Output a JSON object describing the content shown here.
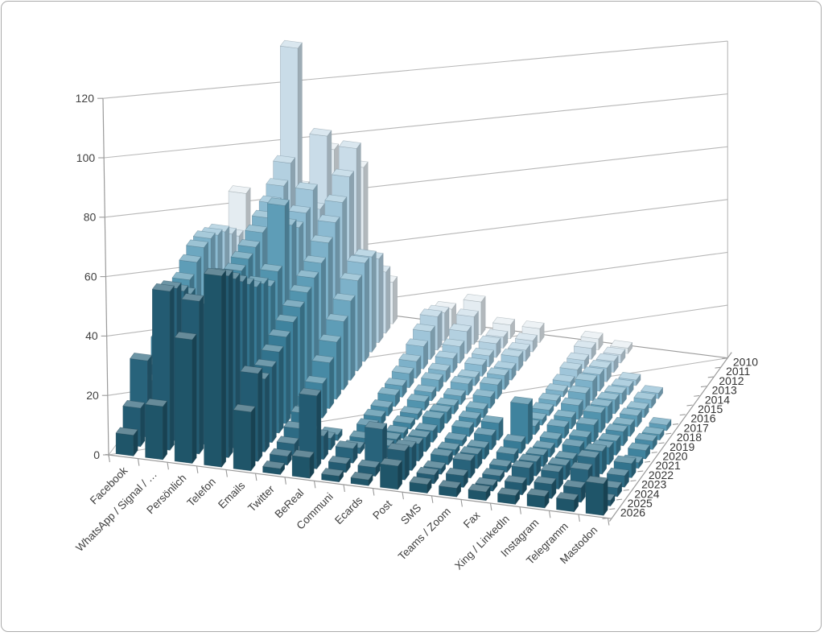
{
  "page": {
    "background": "#ffffff",
    "frame_border_color": "#ababab"
  },
  "chart_data": {
    "type": "bar",
    "style": "3d-clustered-column",
    "title": "",
    "legend_position": "none",
    "grid": true,
    "categories": [
      "Facebook",
      "WhatsApp / Signal / …",
      "Persönlich",
      "Telefon",
      "Emails",
      "Twitter",
      "BeReal",
      "Communi",
      "Ecards",
      "Post",
      "SMS",
      "Teams / Zoom",
      "Fax",
      "Xing / LinkedIn",
      "Instagram",
      "Telegramm",
      "Mastodon"
    ],
    "depth_axis_labels": [
      "2010",
      "2011",
      "2012",
      "2013",
      "2014",
      "2015",
      "2016",
      "2017",
      "2018",
      "2019",
      "2020",
      "2021",
      "2022",
      "2023",
      "2024",
      "2025",
      "2026"
    ],
    "value_axis": {
      "min": 0,
      "max": 120,
      "step": 20,
      "tick_labels": [
        "0",
        "20",
        "40",
        "60",
        "80",
        "100",
        "120"
      ]
    },
    "series": [
      {
        "name": "2010",
        "color": "#e4ecf1",
        "values": [
          40,
          0,
          45,
          60,
          55,
          15,
          0,
          8,
          12,
          5,
          5,
          0,
          4,
          2,
          0,
          0,
          0
        ]
      },
      {
        "name": "2011",
        "color": "#c9dce8",
        "values": [
          28,
          0,
          98,
          68,
          65,
          22,
          0,
          10,
          10,
          4,
          4,
          0,
          4,
          3,
          0,
          0,
          0
        ]
      },
      {
        "name": "2012",
        "color": "#b3d0e0",
        "values": [
          32,
          2,
          60,
          45,
          58,
          30,
          0,
          12,
          8,
          5,
          4,
          0,
          3,
          4,
          0,
          0,
          0
        ]
      },
      {
        "name": "2013",
        "color": "#9fc5d9",
        "values": [
          36,
          4,
          55,
          55,
          52,
          34,
          0,
          10,
          6,
          4,
          5,
          0,
          3,
          5,
          2,
          0,
          0
        ]
      },
      {
        "name": "2014",
        "color": "#8bbad1",
        "values": [
          38,
          6,
          52,
          50,
          48,
          35,
          0,
          8,
          5,
          4,
          4,
          0,
          2,
          6,
          3,
          2,
          0
        ]
      },
      {
        "name": "2015",
        "color": "#7db1c9",
        "values": [
          40,
          10,
          50,
          48,
          44,
          32,
          0,
          6,
          4,
          3,
          5,
          0,
          2,
          7,
          4,
          3,
          0
        ]
      },
      {
        "name": "2016",
        "color": "#6da7c0",
        "values": [
          40,
          14,
          48,
          52,
          40,
          28,
          0,
          5,
          4,
          4,
          5,
          0,
          2,
          6,
          5,
          3,
          0
        ]
      },
      {
        "name": "2017",
        "color": "#5e9db7",
        "values": [
          38,
          18,
          46,
          62,
          38,
          24,
          0,
          4,
          3,
          3,
          4,
          0,
          2,
          5,
          6,
          4,
          2
        ]
      },
      {
        "name": "2018",
        "color": "#5294ae",
        "values": [
          35,
          22,
          45,
          42,
          36,
          20,
          0,
          4,
          3,
          3,
          3,
          0,
          2,
          4,
          7,
          4,
          2
        ]
      },
      {
        "name": "2019",
        "color": "#478aa5",
        "values": [
          32,
          28,
          44,
          40,
          34,
          16,
          0,
          3,
          2,
          4,
          3,
          0,
          3,
          4,
          6,
          5,
          3
        ]
      },
      {
        "name": "2020",
        "color": "#3f839e",
        "values": [
          28,
          33,
          30,
          44,
          32,
          12,
          0,
          3,
          2,
          5,
          3,
          6,
          14,
          3,
          5,
          5,
          3
        ]
      },
      {
        "name": "2021",
        "color": "#387b96",
        "values": [
          24,
          38,
          38,
          46,
          30,
          10,
          0,
          3,
          2,
          4,
          2,
          5,
          4,
          3,
          5,
          6,
          2
        ]
      },
      {
        "name": "2022",
        "color": "#32738d",
        "values": [
          18,
          44,
          42,
          50,
          28,
          8,
          2,
          2,
          3,
          5,
          2,
          4,
          3,
          4,
          4,
          8,
          5
        ]
      },
      {
        "name": "2023",
        "color": "#2d6b84",
        "values": [
          16,
          48,
          45,
          54,
          26,
          6,
          4,
          2,
          4,
          6,
          3,
          5,
          2,
          5,
          5,
          9,
          4
        ]
      },
      {
        "name": "2024",
        "color": "#28637b",
        "values": [
          26,
          52,
          48,
          58,
          25,
          4,
          8,
          5,
          13,
          8,
          2,
          6,
          2,
          6,
          6,
          8,
          3
        ]
      },
      {
        "name": "2025",
        "color": "#235b72",
        "values": [
          13,
          54,
          52,
          62,
          30,
          3,
          25,
          3,
          3,
          10,
          3,
          4,
          2,
          4,
          5,
          5,
          2
        ]
      },
      {
        "name": "2026",
        "color": "#1f5569",
        "values": [
          7,
          18,
          42,
          65,
          20,
          2,
          7,
          2,
          2,
          8,
          3,
          3,
          3,
          3,
          4,
          4,
          11
        ]
      }
    ],
    "colors": {
      "gridline": "#b7b7b7",
      "axis_line": "#9a9a9a",
      "tick_label": "#404040"
    }
  }
}
